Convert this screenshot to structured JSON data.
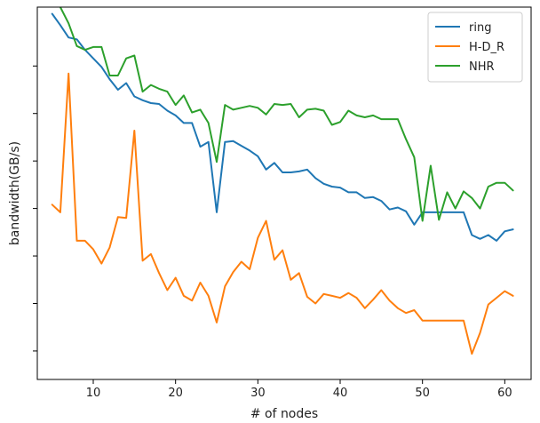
{
  "chart_data": {
    "type": "line",
    "title": "",
    "xlabel": "# of nodes",
    "ylabel": "bandwidth(GB/s)",
    "xlim": [
      3.2,
      63.2
    ],
    "ylim": [
      3.0,
      42.2
    ],
    "xticks": [
      10,
      20,
      30,
      40,
      50,
      60
    ],
    "yticks": [
      6,
      11,
      16,
      21,
      26,
      31,
      36
    ],
    "ytick_labels_visible": false,
    "legend_position": "top-right",
    "series": [
      {
        "name": "ring",
        "color": "#1f77b4",
        "x": [
          5,
          6,
          7,
          8,
          9,
          10,
          11,
          12,
          13,
          14,
          15,
          16,
          17,
          18,
          19,
          20,
          21,
          22,
          23,
          24,
          25,
          26,
          27,
          28,
          29,
          30,
          31,
          32,
          33,
          34,
          35,
          36,
          37,
          38,
          39,
          40,
          41,
          42,
          43,
          44,
          45,
          46,
          47,
          48,
          49,
          50,
          51,
          52,
          53,
          54,
          55,
          56,
          57,
          58,
          59,
          60,
          61
        ],
        "y": [
          41.5,
          40.3,
          39.0,
          38.8,
          37.7,
          36.8,
          35.9,
          34.6,
          33.5,
          34.2,
          32.8,
          32.4,
          32.1,
          32.0,
          31.3,
          30.8,
          30.0,
          30.0,
          27.5,
          28.0,
          20.6,
          28.0,
          28.1,
          27.6,
          27.1,
          26.5,
          25.1,
          25.8,
          24.8,
          24.8,
          24.9,
          25.1,
          24.2,
          23.6,
          23.3,
          23.2,
          22.7,
          22.7,
          22.1,
          22.2,
          21.8,
          20.9,
          21.1,
          20.7,
          19.3,
          20.6,
          20.6,
          20.6,
          20.6,
          20.6,
          20.6,
          18.2,
          17.8,
          18.2,
          17.6,
          18.6,
          18.8
        ]
      },
      {
        "name": "H-D_R",
        "color": "#ff7f0e",
        "x": [
          5,
          6,
          7,
          8,
          9,
          10,
          11,
          12,
          13,
          14,
          15,
          16,
          17,
          18,
          19,
          20,
          21,
          22,
          23,
          24,
          25,
          26,
          27,
          28,
          29,
          30,
          31,
          32,
          33,
          34,
          35,
          36,
          37,
          38,
          39,
          40,
          41,
          42,
          43,
          44,
          45,
          46,
          47,
          48,
          49,
          50,
          51,
          52,
          53,
          54,
          55,
          56,
          57,
          58,
          59,
          60,
          61
        ],
        "y": [
          21.4,
          20.6,
          35.2,
          17.6,
          17.6,
          16.7,
          15.2,
          16.9,
          20.1,
          20.0,
          29.2,
          15.5,
          16.2,
          14.2,
          12.4,
          13.7,
          11.8,
          11.3,
          13.2,
          11.8,
          9.0,
          12.8,
          14.3,
          15.4,
          14.6,
          17.9,
          19.7,
          15.6,
          16.6,
          13.5,
          14.2,
          11.7,
          11.0,
          12.0,
          11.8,
          11.6,
          12.1,
          11.6,
          10.5,
          11.4,
          12.4,
          11.3,
          10.5,
          10.0,
          10.3,
          9.2,
          9.2,
          9.2,
          9.2,
          9.2,
          9.2,
          5.7,
          7.9,
          10.9,
          11.6,
          12.3,
          11.8
        ]
      },
      {
        "name": "NHR",
        "color": "#2ca02c",
        "x": [
          5,
          6,
          7,
          8,
          9,
          10,
          11,
          12,
          13,
          14,
          15,
          16,
          17,
          18,
          19,
          20,
          21,
          22,
          23,
          24,
          25,
          26,
          27,
          28,
          29,
          30,
          31,
          32,
          33,
          34,
          35,
          36,
          37,
          38,
          39,
          40,
          41,
          42,
          43,
          44,
          45,
          46,
          47,
          48,
          49,
          50,
          51,
          52,
          53,
          54,
          55,
          56,
          57,
          58,
          59,
          60,
          61
        ],
        "y": [
          43.1,
          42.2,
          40.5,
          38.1,
          37.7,
          38.0,
          38.0,
          35.0,
          35.0,
          36.8,
          37.1,
          33.3,
          34.0,
          33.6,
          33.3,
          31.9,
          32.9,
          31.1,
          31.4,
          30.0,
          25.9,
          31.9,
          31.4,
          31.6,
          31.8,
          31.6,
          30.9,
          32.0,
          31.9,
          32.0,
          30.6,
          31.4,
          31.5,
          31.3,
          29.8,
          30.1,
          31.3,
          30.8,
          30.6,
          30.8,
          30.4,
          30.4,
          30.4,
          28.3,
          26.4,
          19.7,
          25.5,
          19.8,
          22.7,
          21.0,
          22.8,
          22.1,
          21.0,
          23.3,
          23.7,
          23.7,
          22.9
        ]
      }
    ]
  }
}
